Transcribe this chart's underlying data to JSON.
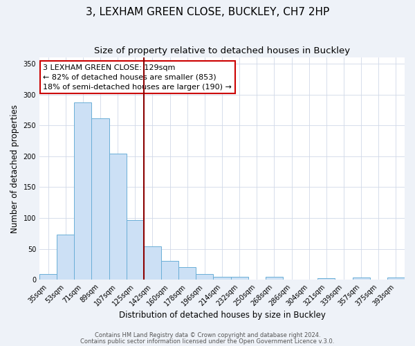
{
  "title": "3, LEXHAM GREEN CLOSE, BUCKLEY, CH7 2HP",
  "subtitle": "Size of property relative to detached houses in Buckley",
  "xlabel": "Distribution of detached houses by size in Buckley",
  "ylabel": "Number of detached properties",
  "bar_labels": [
    "35sqm",
    "53sqm",
    "71sqm",
    "89sqm",
    "107sqm",
    "125sqm",
    "142sqm",
    "160sqm",
    "178sqm",
    "196sqm",
    "214sqm",
    "232sqm",
    "250sqm",
    "268sqm",
    "286sqm",
    "304sqm",
    "321sqm",
    "339sqm",
    "357sqm",
    "375sqm",
    "393sqm"
  ],
  "bar_values": [
    9,
    73,
    287,
    261,
    204,
    97,
    54,
    31,
    20,
    9,
    5,
    5,
    0,
    5,
    0,
    0,
    2,
    0,
    3,
    0,
    3
  ],
  "bar_color": "#cce0f5",
  "bar_edgecolor": "#6aaed6",
  "vline_x": 5.5,
  "vline_color": "#8b0000",
  "annotation_line1": "3 LEXHAM GREEN CLOSE: 129sqm",
  "annotation_line2": "← 82% of detached houses are smaller (853)",
  "annotation_line3": "18% of semi-detached houses are larger (190) →",
  "annotation_box_edgecolor": "#cc0000",
  "annotation_box_facecolor": "#ffffff",
  "ylim": [
    0,
    360
  ],
  "yticks": [
    0,
    50,
    100,
    150,
    200,
    250,
    300,
    350
  ],
  "footer1": "Contains HM Land Registry data © Crown copyright and database right 2024.",
  "footer2": "Contains public sector information licensed under the Open Government Licence v.3.0.",
  "background_color": "#eef2f8",
  "plot_bg_color": "#ffffff",
  "title_fontsize": 11,
  "subtitle_fontsize": 9.5,
  "axis_label_fontsize": 8.5,
  "tick_fontsize": 7,
  "annotation_fontsize": 8,
  "footer_fontsize": 6
}
